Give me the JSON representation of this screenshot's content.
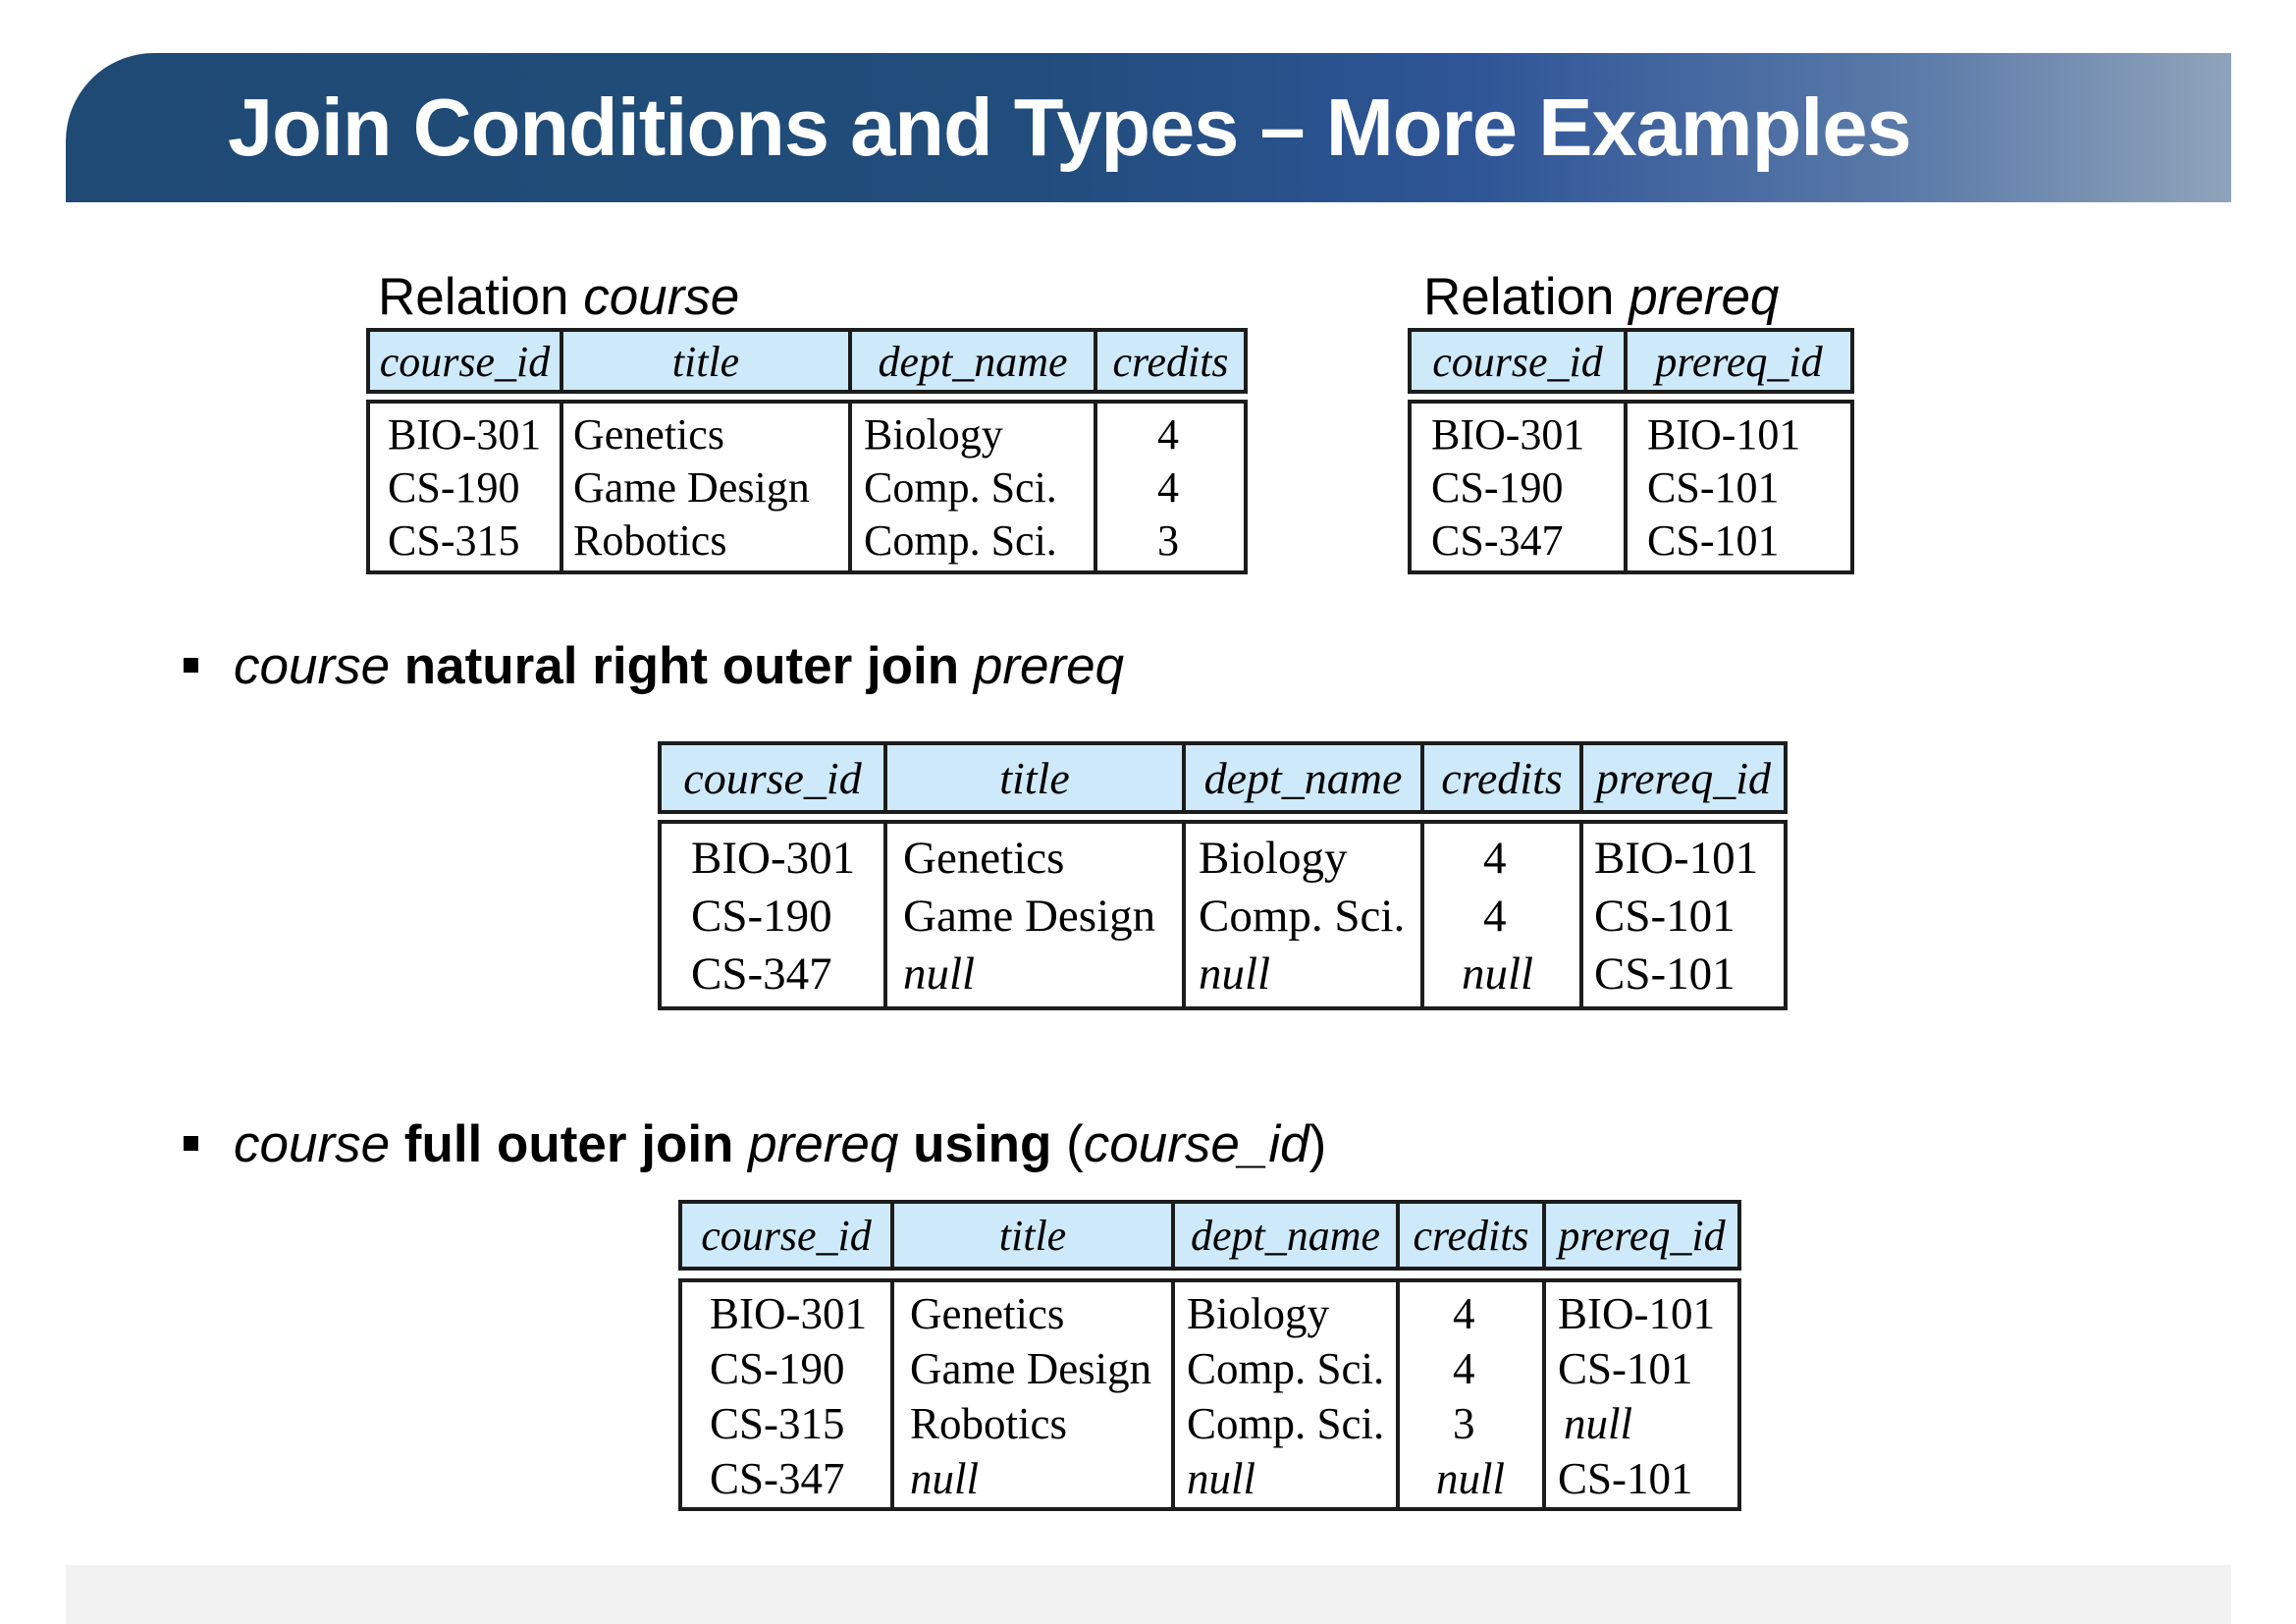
{
  "slide": {
    "title": "Join Conditions and Types – More Examples"
  },
  "relation_course": {
    "caption_prefix": "Relation ",
    "caption_name": "course",
    "columns": [
      "course_id",
      "title",
      "dept_name",
      "credits"
    ],
    "rows": [
      [
        "BIO-301",
        "Genetics",
        "Biology",
        "4"
      ],
      [
        "CS-190",
        "Game Design",
        "Comp. Sci.",
        "4"
      ],
      [
        "CS-315",
        "Robotics",
        "Comp. Sci.",
        "3"
      ]
    ]
  },
  "relation_prereq": {
    "caption_prefix": "Relation ",
    "caption_name": "prereq",
    "columns": [
      "course_id",
      "prereq_id"
    ],
    "rows": [
      [
        "BIO-301",
        "BIO-101"
      ],
      [
        "CS-190",
        "CS-101"
      ],
      [
        "CS-347",
        "CS-101"
      ]
    ]
  },
  "example1": {
    "bullet": {
      "part1": "course",
      "part2": " natural right outer join ",
      "part3": "prereq"
    },
    "columns": [
      "course_id",
      "title",
      "dept_name",
      "credits",
      "prereq_id"
    ],
    "rows": [
      [
        "BIO-301",
        "Genetics",
        "Biology",
        "4",
        "BIO-101"
      ],
      [
        "CS-190",
        "Game Design",
        "Comp. Sci.",
        "4",
        "CS-101"
      ],
      [
        "CS-347",
        "null",
        "null",
        "null",
        "CS-101"
      ]
    ]
  },
  "example2": {
    "bullet": {
      "part1": "course",
      "part2": " full outer join ",
      "part3": "prereq",
      "part4": " using",
      "part5": " (",
      "part6": "course_id",
      "part7": ")"
    },
    "columns": [
      "course_id",
      "title",
      "dept_name",
      "credits",
      "prereq_id"
    ],
    "rows": [
      [
        "BIO-301",
        "Genetics",
        "Biology",
        "4",
        "BIO-101"
      ],
      [
        "CS-190",
        "Game Design",
        "Comp. Sci.",
        "4",
        "CS-101"
      ],
      [
        "CS-315",
        "Robotics",
        "Comp. Sci.",
        "3",
        "null"
      ],
      [
        "CS-347",
        "null",
        "null",
        "null",
        "CS-101"
      ]
    ]
  }
}
